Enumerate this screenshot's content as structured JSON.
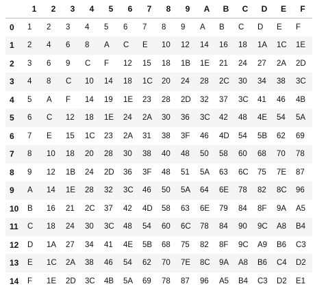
{
  "table": {
    "corner": "",
    "columns": [
      "1",
      "2",
      "3",
      "4",
      "5",
      "6",
      "7",
      "8",
      "9",
      "A",
      "B",
      "C",
      "D",
      "E",
      "F"
    ],
    "rows": [
      {
        "index": "0",
        "cells": [
          "1",
          "2",
          "3",
          "4",
          "5",
          "6",
          "7",
          "8",
          "9",
          "A",
          "B",
          "C",
          "D",
          "E",
          "F"
        ]
      },
      {
        "index": "1",
        "cells": [
          "2",
          "4",
          "6",
          "8",
          "A",
          "C",
          "E",
          "10",
          "12",
          "14",
          "16",
          "18",
          "1A",
          "1C",
          "1E"
        ]
      },
      {
        "index": "2",
        "cells": [
          "3",
          "6",
          "9",
          "C",
          "F",
          "12",
          "15",
          "18",
          "1B",
          "1E",
          "21",
          "24",
          "27",
          "2A",
          "2D"
        ]
      },
      {
        "index": "3",
        "cells": [
          "4",
          "8",
          "C",
          "10",
          "14",
          "18",
          "1C",
          "20",
          "24",
          "28",
          "2C",
          "30",
          "34",
          "38",
          "3C"
        ]
      },
      {
        "index": "4",
        "cells": [
          "5",
          "A",
          "F",
          "14",
          "19",
          "1E",
          "23",
          "28",
          "2D",
          "32",
          "37",
          "3C",
          "41",
          "46",
          "4B"
        ]
      },
      {
        "index": "5",
        "cells": [
          "6",
          "C",
          "12",
          "18",
          "1E",
          "24",
          "2A",
          "30",
          "36",
          "3C",
          "42",
          "48",
          "4E",
          "54",
          "5A"
        ]
      },
      {
        "index": "6",
        "cells": [
          "7",
          "E",
          "15",
          "1C",
          "23",
          "2A",
          "31",
          "38",
          "3F",
          "46",
          "4D",
          "54",
          "5B",
          "62",
          "69"
        ]
      },
      {
        "index": "7",
        "cells": [
          "8",
          "10",
          "18",
          "20",
          "28",
          "30",
          "38",
          "40",
          "48",
          "50",
          "58",
          "60",
          "68",
          "70",
          "78"
        ]
      },
      {
        "index": "8",
        "cells": [
          "9",
          "12",
          "1B",
          "24",
          "2D",
          "36",
          "3F",
          "48",
          "51",
          "5A",
          "63",
          "6C",
          "75",
          "7E",
          "87"
        ]
      },
      {
        "index": "9",
        "cells": [
          "A",
          "14",
          "1E",
          "28",
          "32",
          "3C",
          "46",
          "50",
          "5A",
          "64",
          "6E",
          "78",
          "82",
          "8C",
          "96"
        ]
      },
      {
        "index": "10",
        "cells": [
          "B",
          "16",
          "21",
          "2C",
          "37",
          "42",
          "4D",
          "58",
          "63",
          "6E",
          "79",
          "84",
          "8F",
          "9A",
          "A5"
        ]
      },
      {
        "index": "11",
        "cells": [
          "C",
          "18",
          "24",
          "30",
          "3C",
          "48",
          "54",
          "60",
          "6C",
          "78",
          "84",
          "90",
          "9C",
          "A8",
          "B4"
        ]
      },
      {
        "index": "12",
        "cells": [
          "D",
          "1A",
          "27",
          "34",
          "41",
          "4E",
          "5B",
          "68",
          "75",
          "82",
          "8F",
          "9C",
          "A9",
          "B6",
          "C3"
        ]
      },
      {
        "index": "13",
        "cells": [
          "E",
          "1C",
          "2A",
          "38",
          "46",
          "54",
          "62",
          "70",
          "7E",
          "8C",
          "9A",
          "A8",
          "B6",
          "C4",
          "D2"
        ]
      },
      {
        "index": "14",
        "cells": [
          "F",
          "1E",
          "2D",
          "3C",
          "4B",
          "5A",
          "69",
          "78",
          "87",
          "96",
          "A5",
          "B4",
          "C3",
          "D2",
          "E1"
        ]
      }
    ]
  },
  "colors": {
    "text": "#111111",
    "stripe": "#f5f5f5",
    "header_rule": "#bdbdbd",
    "background": "#ffffff"
  }
}
